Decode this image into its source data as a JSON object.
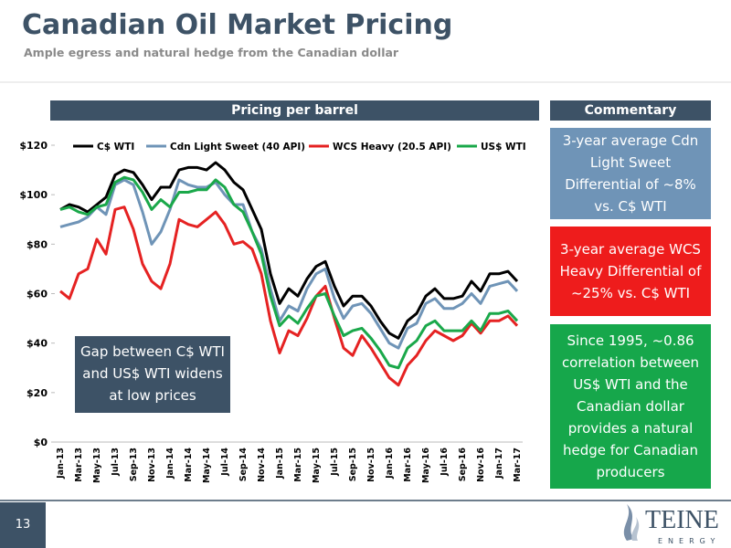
{
  "slide": {
    "title": "Canadian Oil Market Pricing",
    "subtitle": "Ample egress and natural hedge from the Canadian dollar",
    "chart_header": "Pricing per barrel",
    "commentary_header": "Commentary",
    "commentary": [
      "3-year average Cdn Light Sweet Differential of ~8% vs. C$ WTI",
      "3-year average WCS Heavy Differential of ~25% vs. C$ WTI",
      "Since 1995, ~0.86 correlation between US$ WTI and the Canadian dollar provides a natural hedge for Canadian producers"
    ],
    "annotation": "Gap between C$ WTI and US$ WTI widens at low prices",
    "page_number": "13",
    "logo": {
      "name": "TEINE",
      "tagline": "ENERGY"
    }
  },
  "chart_data": {
    "type": "line",
    "legend": "top",
    "categories": [
      "Jan-13",
      null,
      "Mar-13",
      null,
      "May-13",
      null,
      "Jul-13",
      null,
      "Sep-13",
      null,
      "Nov-13",
      null,
      "Jan-14",
      null,
      "Mar-14",
      null,
      "May-14",
      null,
      "Jul-14",
      null,
      "Sep-14",
      null,
      "Nov-14",
      null,
      "Jan-15",
      null,
      "Mar-15",
      null,
      "May-15",
      null,
      "Jul-15",
      null,
      "Sep-15",
      null,
      "Nov-15",
      null,
      "Jan-16",
      null,
      "Mar-16",
      null,
      "May-16",
      null,
      "Jul-16",
      null,
      "Sep-16",
      null,
      "Nov-16",
      null,
      "Jan-17",
      null,
      "Mar-17"
    ],
    "series": [
      {
        "name": "C$ WTI",
        "color": "#000000",
        "values": [
          94,
          96,
          95,
          93,
          96,
          99,
          108,
          110,
          109,
          104,
          98,
          103,
          103,
          110,
          111,
          111,
          110,
          113,
          110,
          105,
          102,
          94,
          86,
          68,
          56,
          62,
          59,
          66,
          71,
          73,
          63,
          55,
          59,
          59,
          55,
          49,
          44,
          42,
          49,
          52,
          59,
          62,
          58,
          58,
          59,
          65,
          61,
          68,
          68,
          69,
          65
        ]
      },
      {
        "name": "Cdn Light Sweet (40 API)",
        "color": "#6f94b7",
        "values": [
          87,
          88,
          89,
          91,
          95,
          92,
          104,
          106,
          104,
          93,
          80,
          85,
          94,
          106,
          104,
          103,
          103,
          105,
          100,
          96,
          96,
          85,
          78,
          62,
          49,
          55,
          53,
          62,
          68,
          70,
          58,
          50,
          55,
          56,
          52,
          46,
          40,
          38,
          46,
          48,
          56,
          58,
          54,
          54,
          56,
          60,
          56,
          63,
          64,
          65,
          61
        ]
      },
      {
        "name": "WCS Heavy (20.5 API)",
        "color": "#e52222",
        "values": [
          61,
          58,
          68,
          70,
          82,
          76,
          94,
          95,
          86,
          72,
          65,
          62,
          72,
          90,
          88,
          87,
          90,
          93,
          88,
          80,
          81,
          78,
          68,
          49,
          36,
          45,
          43,
          50,
          59,
          63,
          50,
          38,
          35,
          43,
          38,
          32,
          26,
          23,
          31,
          35,
          41,
          45,
          43,
          41,
          43,
          48,
          44,
          49,
          49,
          51,
          47
        ]
      },
      {
        "name": "US$ WTI",
        "color": "#1aa84a",
        "values": [
          94,
          95,
          93,
          92,
          95,
          96,
          105,
          107,
          106,
          101,
          94,
          98,
          95,
          101,
          101,
          102,
          102,
          106,
          103,
          96,
          93,
          85,
          76,
          59,
          47,
          51,
          48,
          54,
          59,
          60,
          51,
          43,
          45,
          46,
          42,
          37,
          31,
          30,
          38,
          41,
          47,
          49,
          45,
          45,
          45,
          49,
          45,
          52,
          52,
          53,
          49
        ]
      }
    ],
    "ylim": [
      0,
      120
    ],
    "yticks": [
      {
        "value": 0,
        "label": "$0"
      },
      {
        "value": 20,
        "label": "$20"
      },
      {
        "value": 40,
        "label": "$40"
      },
      {
        "value": 60,
        "label": "$60"
      },
      {
        "value": 80,
        "label": "$80"
      },
      {
        "value": 100,
        "label": "$100"
      },
      {
        "value": 120,
        "label": "$120"
      }
    ],
    "grid": false
  }
}
